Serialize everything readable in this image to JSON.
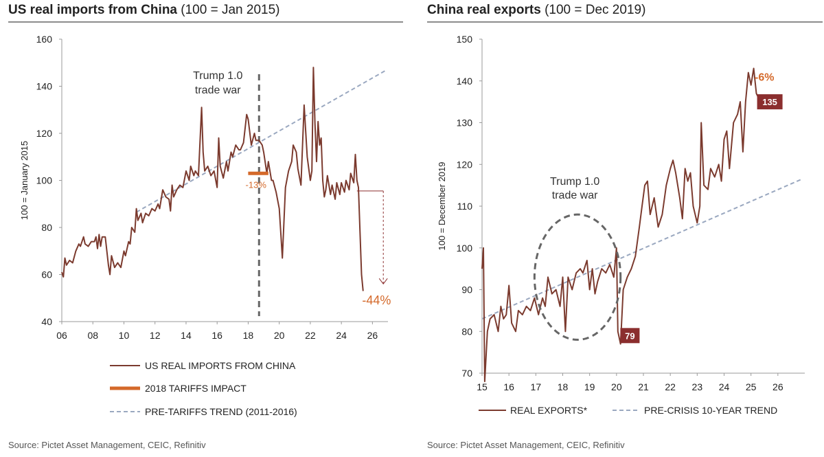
{
  "colors": {
    "series": "#7b3a2e",
    "tariff": "#d4692a",
    "trend": "#9aa8c0",
    "marker": "#8b2e2e",
    "annotation_orange": "#d4692a",
    "dashed_vertical": "#666666",
    "ellipse": "#666666"
  },
  "chart_data": [
    {
      "type": "line",
      "title": "US real imports from China",
      "subtitle": "(100 = Jan 2015)",
      "ylabel": "100 = January 2015",
      "xlabel": "",
      "xlim": [
        2006,
        2027
      ],
      "ylim": [
        40,
        160
      ],
      "x_ticks": [
        "06",
        "08",
        "10",
        "12",
        "14",
        "16",
        "18",
        "20",
        "22",
        "24",
        "26"
      ],
      "x_tick_values": [
        2006,
        2008,
        2010,
        2012,
        2014,
        2016,
        2018,
        2020,
        2022,
        2024,
        2026
      ],
      "y_ticks": [
        40,
        60,
        80,
        100,
        120,
        140,
        160
      ],
      "grid": false,
      "legend_position": "bottom",
      "series": [
        {
          "name": "US REAL IMPORTS FROM CHINA",
          "points": [
            [
              2006.0,
              61
            ],
            [
              2006.1,
              59
            ],
            [
              2006.2,
              67
            ],
            [
              2006.3,
              64
            ],
            [
              2006.5,
              66
            ],
            [
              2006.7,
              65
            ],
            [
              2006.9,
              70
            ],
            [
              2007.1,
              73
            ],
            [
              2007.2,
              72
            ],
            [
              2007.4,
              76
            ],
            [
              2007.5,
              73
            ],
            [
              2007.7,
              72
            ],
            [
              2007.9,
              74
            ],
            [
              2008.1,
              74
            ],
            [
              2008.2,
              76
            ],
            [
              2008.3,
              71
            ],
            [
              2008.4,
              77
            ],
            [
              2008.5,
              72
            ],
            [
              2008.6,
              76
            ],
            [
              2008.8,
              76
            ],
            [
              2008.9,
              70
            ],
            [
              2009.0,
              64
            ],
            [
              2009.1,
              60
            ],
            [
              2009.2,
              68
            ],
            [
              2009.4,
              63
            ],
            [
              2009.6,
              65
            ],
            [
              2009.8,
              63
            ],
            [
              2010.0,
              70
            ],
            [
              2010.1,
              68
            ],
            [
              2010.3,
              74
            ],
            [
              2010.4,
              73
            ],
            [
              2010.5,
              80
            ],
            [
              2010.7,
              78
            ],
            [
              2010.8,
              88
            ],
            [
              2010.9,
              83
            ],
            [
              2011.1,
              86
            ],
            [
              2011.2,
              82
            ],
            [
              2011.4,
              86
            ],
            [
              2011.6,
              85
            ],
            [
              2011.8,
              88
            ],
            [
              2012.0,
              87
            ],
            [
              2012.2,
              90
            ],
            [
              2012.3,
              88
            ],
            [
              2012.5,
              96
            ],
            [
              2012.7,
              93
            ],
            [
              2012.9,
              92
            ],
            [
              2013.0,
              87
            ],
            [
              2013.1,
              98
            ],
            [
              2013.2,
              93
            ],
            [
              2013.4,
              96
            ],
            [
              2013.6,
              98
            ],
            [
              2013.8,
              97
            ],
            [
              2014.0,
              104
            ],
            [
              2014.2,
              100
            ],
            [
              2014.3,
              106
            ],
            [
              2014.5,
              102
            ],
            [
              2014.6,
              104
            ],
            [
              2014.8,
              102
            ],
            [
              2015.0,
              131
            ],
            [
              2015.1,
              112
            ],
            [
              2015.2,
              104
            ],
            [
              2015.4,
              106
            ],
            [
              2015.6,
              102
            ],
            [
              2015.8,
              104
            ],
            [
              2016.0,
              97
            ],
            [
              2016.1,
              118
            ],
            [
              2016.2,
              106
            ],
            [
              2016.4,
              101
            ],
            [
              2016.6,
              108
            ],
            [
              2016.7,
              104
            ],
            [
              2016.9,
              112
            ],
            [
              2017.0,
              110
            ],
            [
              2017.2,
              115
            ],
            [
              2017.4,
              113
            ],
            [
              2017.5,
              113
            ],
            [
              2017.7,
              116
            ],
            [
              2017.9,
              128
            ],
            [
              2018.0,
              126
            ],
            [
              2018.2,
              115
            ],
            [
              2018.4,
              120
            ],
            [
              2018.5,
              117
            ],
            [
              2018.7,
              117
            ],
            [
              2018.9,
              115
            ],
            [
              2019.0,
              112
            ],
            [
              2019.2,
              103
            ],
            [
              2019.3,
              108
            ],
            [
              2019.5,
              100
            ],
            [
              2019.6,
              100
            ],
            [
              2019.8,
              95
            ],
            [
              2020.0,
              88
            ],
            [
              2020.2,
              67
            ],
            [
              2020.4,
              97
            ],
            [
              2020.6,
              104
            ],
            [
              2020.8,
              108
            ],
            [
              2020.9,
              115
            ],
            [
              2021.1,
              112
            ],
            [
              2021.2,
              105
            ],
            [
              2021.4,
              98
            ],
            [
              2021.5,
              115
            ],
            [
              2021.6,
              132
            ],
            [
              2021.8,
              110
            ],
            [
              2022.0,
              100
            ],
            [
              2022.1,
              104
            ],
            [
              2022.2,
              148
            ],
            [
              2022.3,
              124
            ],
            [
              2022.4,
              108
            ],
            [
              2022.5,
              125
            ],
            [
              2022.6,
              115
            ],
            [
              2022.7,
              118
            ],
            [
              2022.8,
              100
            ],
            [
              2022.9,
              93
            ],
            [
              2023.0,
              96
            ],
            [
              2023.1,
              102
            ],
            [
              2023.3,
              94
            ],
            [
              2023.4,
              98
            ],
            [
              2023.6,
              92
            ],
            [
              2023.7,
              99
            ],
            [
              2023.9,
              94
            ],
            [
              2024.0,
              99
            ],
            [
              2024.2,
              95
            ],
            [
              2024.3,
              100
            ],
            [
              2024.5,
              96
            ],
            [
              2024.6,
              103
            ],
            [
              2024.8,
              99
            ],
            [
              2024.9,
              111
            ],
            [
              2025.0,
              100
            ],
            [
              2025.1,
              97
            ],
            [
              2025.2,
              78
            ],
            [
              2025.3,
              60
            ],
            [
              2025.4,
              53
            ]
          ]
        },
        {
          "name": "2018 TARIFFS IMPACT",
          "points": [
            [
              2018.0,
              103
            ],
            [
              2019.3,
              103
            ]
          ]
        },
        {
          "name": "PRE-TARIFFS TREND (2011-2016)",
          "points": [
            [
              2010.8,
              86.5
            ],
            [
              2026.8,
              146.5
            ]
          ]
        }
      ],
      "annotations": [
        {
          "text_line1": "Trump 1.0",
          "text_line2": "trade war",
          "x": 2018.7
        },
        {
          "text": "-13%",
          "x": 2018.5,
          "y": 100
        },
        {
          "text": "-44%",
          "x": 2026.0,
          "y": 49
        }
      ],
      "arrow": {
        "from": [
          2025.0,
          95.5
        ],
        "corner": [
          2026.7,
          95.5
        ],
        "to": [
          2026.7,
          56
        ]
      },
      "vertical_marker_x": 2018.7
    },
    {
      "type": "line",
      "title": "China real exports",
      "subtitle": "(100 = Dec 2019)",
      "ylabel": "100 = December 2019",
      "xlabel": "",
      "xlim": [
        2015,
        2027
      ],
      "ylim": [
        70,
        150
      ],
      "x_ticks": [
        "15",
        "16",
        "17",
        "18",
        "19",
        "20",
        "21",
        "22",
        "23",
        "24",
        "25",
        "26"
      ],
      "x_tick_values": [
        2015,
        2016,
        2017,
        2018,
        2019,
        2020,
        2021,
        2022,
        2023,
        2024,
        2025,
        2026
      ],
      "y_ticks": [
        70,
        80,
        90,
        100,
        110,
        120,
        130,
        140,
        150
      ],
      "grid": false,
      "legend_position": "bottom",
      "series": [
        {
          "name": "REAL EXPORTS*",
          "points": [
            [
              2015.0,
              95
            ],
            [
              2015.05,
              100
            ],
            [
              2015.1,
              68
            ],
            [
              2015.2,
              80
            ],
            [
              2015.3,
              83
            ],
            [
              2015.45,
              84
            ],
            [
              2015.6,
              80
            ],
            [
              2015.7,
              86
            ],
            [
              2015.8,
              83
            ],
            [
              2015.9,
              84
            ],
            [
              2016.0,
              91
            ],
            [
              2016.1,
              82
            ],
            [
              2016.25,
              80
            ],
            [
              2016.35,
              85
            ],
            [
              2016.5,
              84
            ],
            [
              2016.65,
              86
            ],
            [
              2016.8,
              85
            ],
            [
              2016.95,
              88
            ],
            [
              2017.1,
              84
            ],
            [
              2017.25,
              88
            ],
            [
              2017.35,
              86
            ],
            [
              2017.45,
              93
            ],
            [
              2017.6,
              89
            ],
            [
              2017.75,
              90
            ],
            [
              2017.9,
              86
            ],
            [
              2018.0,
              93
            ],
            [
              2018.1,
              80
            ],
            [
              2018.2,
              93
            ],
            [
              2018.35,
              90
            ],
            [
              2018.5,
              94
            ],
            [
              2018.65,
              95
            ],
            [
              2018.75,
              94
            ],
            [
              2018.9,
              97
            ],
            [
              2019.0,
              90
            ],
            [
              2019.1,
              95
            ],
            [
              2019.2,
              89
            ],
            [
              2019.3,
              92
            ],
            [
              2019.45,
              95
            ],
            [
              2019.6,
              94
            ],
            [
              2019.75,
              96
            ],
            [
              2019.9,
              93
            ],
            [
              2020.0,
              100
            ],
            [
              2020.05,
              80
            ],
            [
              2020.15,
              77
            ],
            [
              2020.25,
              90
            ],
            [
              2020.4,
              93
            ],
            [
              2020.55,
              95
            ],
            [
              2020.7,
              98
            ],
            [
              2020.85,
              105
            ],
            [
              2020.95,
              110
            ],
            [
              2021.05,
              115
            ],
            [
              2021.15,
              116
            ],
            [
              2021.25,
              108
            ],
            [
              2021.4,
              112
            ],
            [
              2021.55,
              105
            ],
            [
              2021.7,
              108
            ],
            [
              2021.85,
              115
            ],
            [
              2022.0,
              119
            ],
            [
              2022.1,
              121
            ],
            [
              2022.2,
              118
            ],
            [
              2022.35,
              112
            ],
            [
              2022.45,
              107
            ],
            [
              2022.55,
              119
            ],
            [
              2022.65,
              116
            ],
            [
              2022.75,
              118
            ],
            [
              2022.85,
              110
            ],
            [
              2023.0,
              106
            ],
            [
              2023.1,
              110
            ],
            [
              2023.15,
              130
            ],
            [
              2023.25,
              115
            ],
            [
              2023.4,
              114
            ],
            [
              2023.5,
              119
            ],
            [
              2023.65,
              117
            ],
            [
              2023.8,
              120
            ],
            [
              2023.9,
              116
            ],
            [
              2024.0,
              126
            ],
            [
              2024.1,
              128
            ],
            [
              2024.2,
              119
            ],
            [
              2024.35,
              130
            ],
            [
              2024.5,
              132
            ],
            [
              2024.6,
              135
            ],
            [
              2024.7,
              123
            ],
            [
              2024.8,
              135
            ],
            [
              2024.9,
              142
            ],
            [
              2025.0,
              139
            ],
            [
              2025.1,
              143
            ],
            [
              2025.2,
              137
            ],
            [
              2025.35,
              135
            ]
          ]
        },
        {
          "name": "PRE-CRISIS 10-YEAR TREND",
          "points": [
            [
              2015.0,
              83
            ],
            [
              2026.9,
              116.5
            ]
          ]
        }
      ],
      "annotations": [
        {
          "text_line1": "Trump 1.0",
          "text_line2": "trade war",
          "x": 2018.45
        },
        {
          "text": "-6%",
          "x": 2025.5,
          "y": 141
        }
      ],
      "markers": [
        {
          "label": "135",
          "x": 2025.7,
          "y": 135
        },
        {
          "label": "79",
          "x": 2020.5,
          "y": 79
        }
      ],
      "ellipse": {
        "cx": 2018.55,
        "cy": 93,
        "rx": 1.6,
        "ry": 15
      }
    }
  ],
  "left": {
    "title": "US real imports from China",
    "subtitle": "(100 = Jan 2015)",
    "source": "Source: Pictet Asset Management, CEIC, Refinitiv"
  },
  "right": {
    "title": "China real exports",
    "subtitle": "(100 = Dec 2019)",
    "source": "Source: Pictet Asset Management, CEIC, Refinitiv"
  }
}
